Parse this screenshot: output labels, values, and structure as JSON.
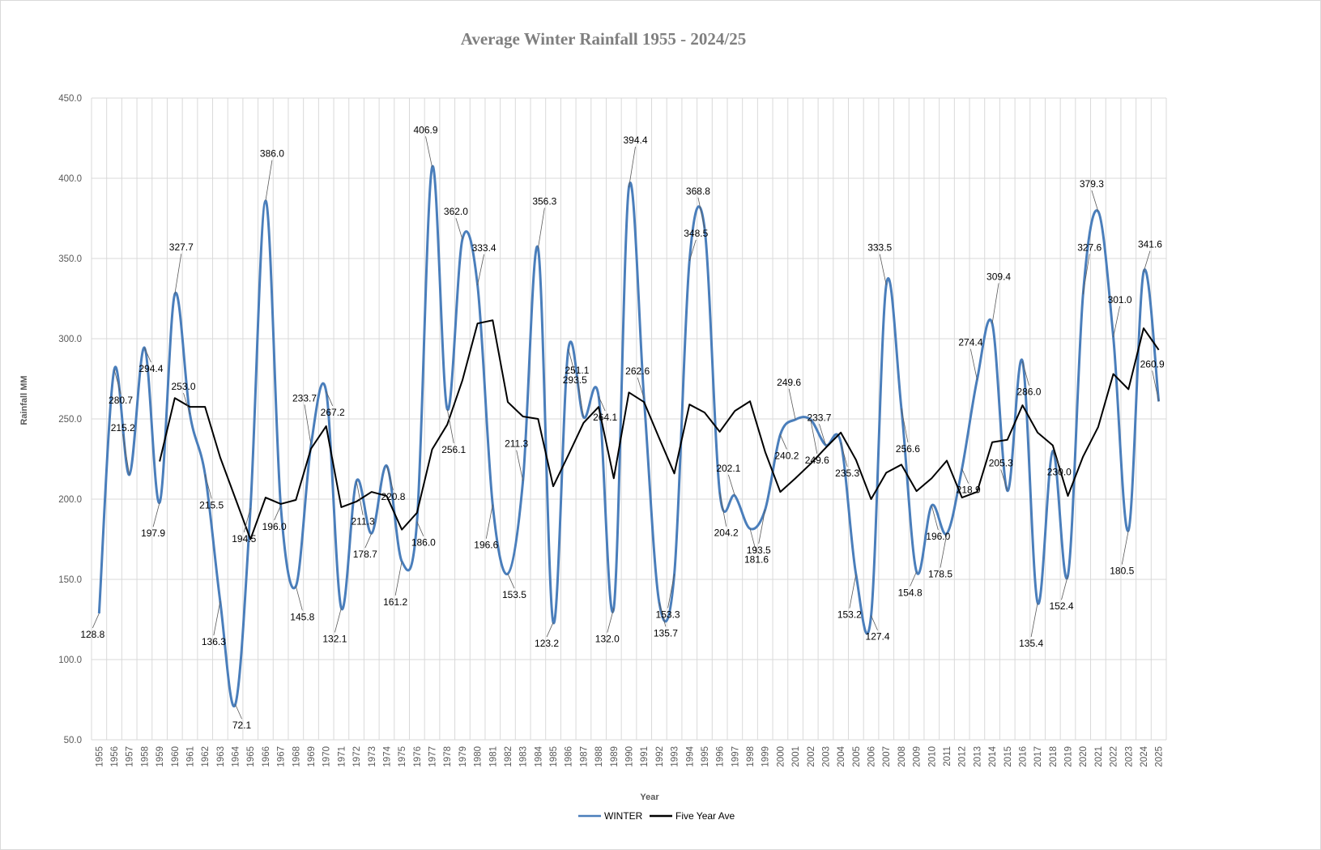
{
  "chart_data": {
    "type": "line",
    "title": "Average Winter Rainfall 1955 - 2024/25",
    "xlabel": "Year",
    "ylabel": "Rainfall MM",
    "ylim": [
      50,
      450
    ],
    "ytick_step": 50,
    "yticks": [
      "50.0",
      "100.0",
      "150.0",
      "200.0",
      "250.0",
      "300.0",
      "350.0",
      "400.0",
      "450.0"
    ],
    "grid": "on",
    "legend": "bottom",
    "categories": [
      1955,
      1956,
      1957,
      1958,
      1959,
      1960,
      1961,
      1962,
      1963,
      1964,
      1965,
      1966,
      1967,
      1968,
      1969,
      1970,
      1971,
      1972,
      1973,
      1974,
      1975,
      1976,
      1977,
      1978,
      1979,
      1980,
      1981,
      1982,
      1983,
      1984,
      1985,
      1986,
      1987,
      1988,
      1989,
      1990,
      1991,
      1992,
      1993,
      1994,
      1995,
      1996,
      1997,
      1998,
      1999,
      2000,
      2001,
      2002,
      2003,
      2004,
      2005,
      2006,
      2007,
      2008,
      2009,
      2010,
      2011,
      2012,
      2013,
      2014,
      2015,
      2016,
      2017,
      2018,
      2019,
      2020,
      2021,
      2022,
      2023,
      2024,
      2025
    ],
    "series": [
      {
        "name": "WINTER",
        "color": "#4a7ebb",
        "values": [
          128.8,
          280.7,
          215.2,
          294.4,
          197.9,
          327.7,
          253.0,
          215.5,
          136.3,
          72.1,
          194.5,
          386.0,
          196.0,
          145.8,
          233.7,
          267.2,
          132.1,
          211.3,
          178.7,
          220.8,
          161.2,
          186.0,
          406.9,
          256.1,
          362.0,
          333.4,
          196.6,
          153.5,
          211.3,
          356.3,
          123.2,
          293.5,
          251.1,
          264.1,
          132.0,
          394.4,
          262.6,
          135.7,
          153.3,
          348.5,
          368.8,
          204.2,
          202.1,
          181.6,
          193.5,
          240.2,
          249.6,
          249.6,
          233.7,
          235.3,
          153.2,
          127.4,
          333.5,
          256.6,
          154.8,
          196.0,
          178.5,
          218.9,
          274.4,
          309.4,
          205.3,
          286.0,
          135.4,
          230.0,
          152.4,
          327.6,
          379.3,
          301.0,
          180.5,
          341.6,
          260.9
        ]
      },
      {
        "name": "Five Year Ave",
        "color": "#000000",
        "values": [
          null,
          null,
          null,
          null,
          223.5,
          263,
          257.5,
          257.5,
          226,
          200.5,
          175,
          201,
          197,
          199.5,
          231.5,
          245.5,
          195,
          198.5,
          204.5,
          202,
          181,
          191.5,
          231,
          246.5,
          274,
          309.5,
          311.5,
          260.5,
          251.5,
          250,
          208,
          227.5,
          247.5,
          257.5,
          213,
          266.5,
          260.5,
          238,
          216,
          259,
          254,
          242,
          255,
          261,
          229.5,
          204.5,
          213,
          222,
          232,
          241.5,
          224.5,
          200,
          216.5,
          221.5,
          205,
          213,
          224,
          201,
          204.5,
          235.5,
          237,
          258.5,
          241.5,
          233.5,
          202,
          226.5,
          245,
          278,
          268.5,
          306.5,
          293
        ]
      }
    ],
    "data_labels": [
      {
        "year": 1955,
        "text": "128.8"
      },
      {
        "year": 1956,
        "text": "280.7"
      },
      {
        "year": 1957,
        "text": "215.2"
      },
      {
        "year": 1958,
        "text": "294.4"
      },
      {
        "year": 1959,
        "text": "197.9"
      },
      {
        "year": 1960,
        "text": "327.7"
      },
      {
        "year": 1961,
        "text": "253.0"
      },
      {
        "year": 1962,
        "text": "215.5"
      },
      {
        "year": 1963,
        "text": "136.3"
      },
      {
        "year": 1964,
        "text": "72.1"
      },
      {
        "year": 1965,
        "text": "194.5"
      },
      {
        "year": 1966,
        "text": "386.0"
      },
      {
        "year": 1967,
        "text": "196.0"
      },
      {
        "year": 1968,
        "text": "145.8"
      },
      {
        "year": 1969,
        "text": "233.7"
      },
      {
        "year": 1970,
        "text": "267.2"
      },
      {
        "year": 1971,
        "text": "132.1"
      },
      {
        "year": 1972,
        "text": "211.3"
      },
      {
        "year": 1973,
        "text": "178.7"
      },
      {
        "year": 1974,
        "text": "220.8"
      },
      {
        "year": 1975,
        "text": "161.2"
      },
      {
        "year": 1976,
        "text": "186.0"
      },
      {
        "year": 1977,
        "text": "406.9"
      },
      {
        "year": 1978,
        "text": "256.1"
      },
      {
        "year": 1979,
        "text": "362.0"
      },
      {
        "year": 1980,
        "text": "333.4"
      },
      {
        "year": 1981,
        "text": "196.6"
      },
      {
        "year": 1982,
        "text": "153.5"
      },
      {
        "year": 1983,
        "text": "211.3"
      },
      {
        "year": 1984,
        "text": "356.3"
      },
      {
        "year": 1985,
        "text": "123.2"
      },
      {
        "year": 1986,
        "text": "293.5"
      },
      {
        "year": 1987,
        "text": "251.1"
      },
      {
        "year": 1988,
        "text": "264.1"
      },
      {
        "year": 1989,
        "text": "132.0"
      },
      {
        "year": 1990,
        "text": "394.4"
      },
      {
        "year": 1991,
        "text": "262.6"
      },
      {
        "year": 1992,
        "text": "135.7"
      },
      {
        "year": 1993,
        "text": "153.3"
      },
      {
        "year": 1994,
        "text": "348.5"
      },
      {
        "year": 1995,
        "text": "368.8"
      },
      {
        "year": 1996,
        "text": "204.2"
      },
      {
        "year": 1997,
        "text": "202.1"
      },
      {
        "year": 1998,
        "text": "181.6"
      },
      {
        "year": 1999,
        "text": "193.5"
      },
      {
        "year": 2000,
        "text": "240.2"
      },
      {
        "year": 2001,
        "text": "249.6"
      },
      {
        "year": 2002,
        "text": "249.6"
      },
      {
        "year": 2003,
        "text": "233.7"
      },
      {
        "year": 2004,
        "text": "235.3"
      },
      {
        "year": 2005,
        "text": "153.2"
      },
      {
        "year": 2006,
        "text": "127.4"
      },
      {
        "year": 2007,
        "text": "333.5"
      },
      {
        "year": 2008,
        "text": "256.6"
      },
      {
        "year": 2009,
        "text": "154.8"
      },
      {
        "year": 2010,
        "text": "196.0"
      },
      {
        "year": 2011,
        "text": "178.5"
      },
      {
        "year": 2012,
        "text": "218.9"
      },
      {
        "year": 2013,
        "text": "274.4"
      },
      {
        "year": 2014,
        "text": "309.4"
      },
      {
        "year": 2015,
        "text": "205.3"
      },
      {
        "year": 2016,
        "text": "286.0"
      },
      {
        "year": 2017,
        "text": "135.4"
      },
      {
        "year": 2018,
        "text": "230.0"
      },
      {
        "year": 2019,
        "text": "152.4"
      },
      {
        "year": 2020,
        "text": "327.6"
      },
      {
        "year": 2021,
        "text": "379.3"
      },
      {
        "year": 2022,
        "text": "301.0"
      },
      {
        "year": 2023,
        "text": "180.5"
      },
      {
        "year": 2024,
        "text": "341.6"
      },
      {
        "year": 2025,
        "text": "260.9"
      }
    ]
  }
}
